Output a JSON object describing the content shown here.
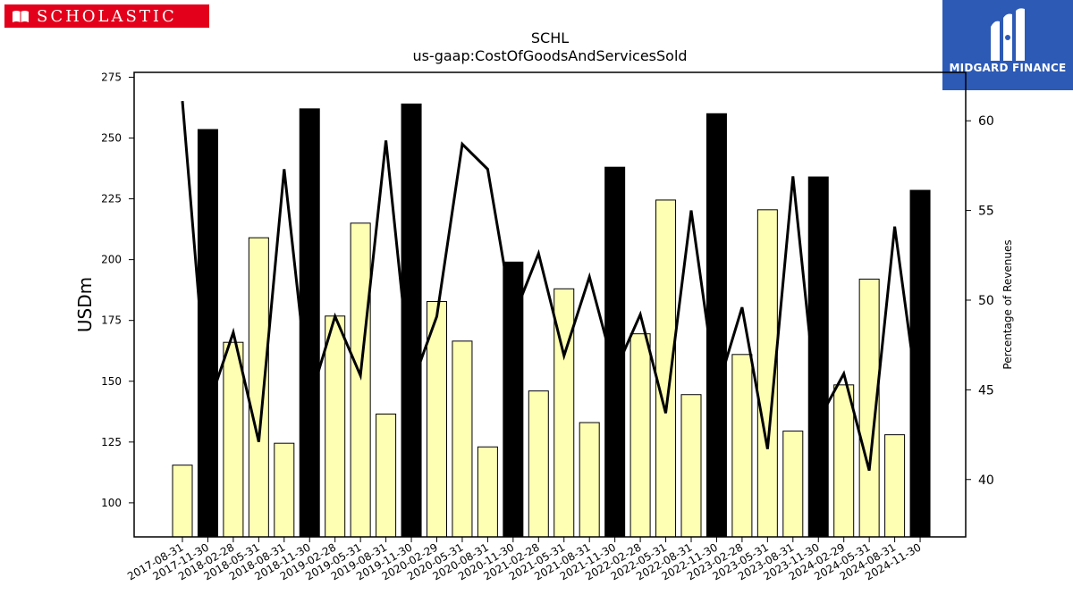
{
  "brand": {
    "left_logo_text": "SCHOLASTIC",
    "right_logo_text": "MIDGARD FINANCE",
    "left_logo_color": "#e3001b",
    "right_logo_color": "#2d5ab5"
  },
  "chart_data": {
    "type": "bar",
    "title": "SCHL",
    "subtitle": "us-gaap:CostOfGoodsAndServicesSold",
    "ylabel": "USDm",
    "y2label": "Percentage of Revenues",
    "ylim": [
      86,
      277
    ],
    "y2lim": [
      36.8,
      62.7
    ],
    "yticks": [
      100,
      125,
      150,
      175,
      200,
      225,
      250,
      275
    ],
    "y2ticks": [
      40,
      45,
      50,
      55,
      60
    ],
    "grid": false,
    "categories": [
      "2017-08-31",
      "2017-11-30",
      "2018-02-28",
      "2018-05-31",
      "2018-08-31",
      "2018-11-30",
      "2019-02-28",
      "2019-05-31",
      "2019-08-31",
      "2019-11-30",
      "2020-02-29",
      "2020-05-31",
      "2020-08-31",
      "2020-11-30",
      "2021-02-28",
      "2021-05-31",
      "2021-08-31",
      "2021-11-30",
      "2022-02-28",
      "2022-05-31",
      "2022-08-31",
      "2022-11-30",
      "2023-02-28",
      "2023-05-31",
      "2023-08-31",
      "2023-11-30",
      "2024-02-29",
      "2024-05-31",
      "2024-08-31",
      "2024-11-30"
    ],
    "series": [
      {
        "kind": "bar",
        "values": [
          115.5,
          253.5,
          166.0,
          209.0,
          124.5,
          262.0,
          176.8,
          215.0,
          136.5,
          264.0,
          182.8,
          166.5,
          123.0,
          199.0,
          146.0,
          188.0,
          133.0,
          238.0,
          169.5,
          224.5,
          144.5,
          260.0,
          161.0,
          220.5,
          129.5,
          234.0,
          148.5,
          192.0,
          128.0,
          228.5
        ],
        "colors": [
          "#ffffb3",
          "#000000",
          "#ffffb3",
          "#ffffb3",
          "#ffffb3",
          "#000000",
          "#ffffb3",
          "#ffffb3",
          "#ffffb3",
          "#000000",
          "#ffffb3",
          "#ffffb3",
          "#ffffb3",
          "#000000",
          "#ffffb3",
          "#ffffb3",
          "#ffffb3",
          "#000000",
          "#ffffb3",
          "#ffffb3",
          "#ffffb3",
          "#000000",
          "#ffffb3",
          "#ffffb3",
          "#ffffb3",
          "#000000",
          "#ffffb3",
          "#ffffb3",
          "#ffffb3",
          "#000000"
        ]
      },
      {
        "kind": "line",
        "axis": "right",
        "color": "#000000",
        "values": [
          61.1,
          44.0,
          48.2,
          42.1,
          57.3,
          44.4,
          49.1,
          45.8,
          58.9,
          45.2,
          49.1,
          58.7,
          57.3,
          49.0,
          52.6,
          46.9,
          51.3,
          46.0,
          49.2,
          43.7,
          55.0,
          44.9,
          49.6,
          41.7,
          56.9,
          43.3,
          45.9,
          40.5,
          54.1,
          43.6
        ]
      }
    ]
  }
}
